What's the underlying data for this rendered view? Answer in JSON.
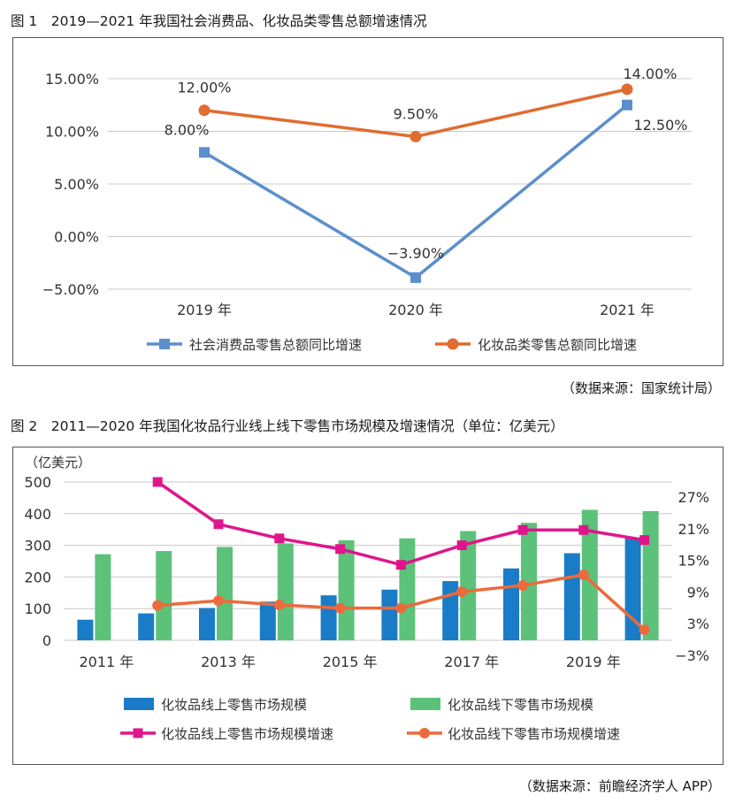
{
  "figure1": {
    "title": "图 1　2019—2021 年我国社会消费品、化妆品类零售总额增速情况",
    "source": "（数据来源：国家统计局）"
  },
  "figure2": {
    "title": "图 2　2011—2020 年我国化妆品行业线上线下零售市场规模及增速情况（单位：亿美元）",
    "source": "（数据来源：前瞻经济学人 APP）"
  },
  "colors": {
    "blue_line": "#5b8fcc",
    "orange_line": "#e06c30",
    "blue_bar": "#1a7cc7",
    "green_bar": "#5cc27a",
    "magenta_line": "#e0158c",
    "orange_line2": "#ec6a3c"
  },
  "chart_data": [
    {
      "type": "line",
      "categories": [
        "2019 年",
        "2020 年",
        "2021 年"
      ],
      "series": [
        {
          "name": "社会消费品零售总额同比增速",
          "values": [
            8.0,
            -3.9,
            12.5
          ],
          "labels": [
            "8.00%",
            "−3.90%",
            "12.50%"
          ]
        },
        {
          "name": "化妆品类零售总额同比增速",
          "values": [
            12.0,
            9.5,
            14.0
          ],
          "labels": [
            "12.00%",
            "9.50%",
            "14.00%"
          ]
        }
      ],
      "y_ticks": [
        "15.00%",
        "10.00%",
        "5.00%",
        "0.00%",
        "−5.00%"
      ],
      "ylim": [
        -5,
        15
      ],
      "grid": "horizontal",
      "legend": "bottom"
    },
    {
      "type": "bar",
      "categories": [
        2011,
        2012,
        2013,
        2014,
        2015,
        2016,
        2017,
        2018,
        2019,
        2020
      ],
      "x_tick_labels": [
        "2011 年",
        "2013 年",
        "2015 年",
        "2017 年",
        "2019 年"
      ],
      "y_unit_label": "（亿美元）",
      "y_ticks": [
        "500",
        "400",
        "300",
        "200",
        "100",
        "0"
      ],
      "ylim": [
        0,
        500
      ],
      "y2_ticks": [
        "27%",
        "21%",
        "15%",
        "9%",
        "3%",
        "−3%"
      ],
      "y2lim": [
        -3,
        27
      ],
      "series": [
        {
          "name": "化妆品线上零售市场规模",
          "kind": "bar",
          "axis": "left",
          "values": [
            65,
            85,
            102,
            122,
            142,
            160,
            187,
            227,
            275,
            323
          ]
        },
        {
          "name": "化妆品线下零售市场规模",
          "kind": "bar",
          "axis": "left",
          "values": [
            272,
            282,
            295,
            306,
            316,
            322,
            345,
            371,
            412,
            408
          ]
        },
        {
          "name": "化妆品线上零售市场规模增速",
          "kind": "line",
          "axis": "right",
          "values": [
            null,
            27,
            19,
            16.3,
            14.3,
            11.3,
            15,
            17.9,
            17.9,
            16
          ]
        },
        {
          "name": "化妆品线下零售市场规模增速",
          "kind": "line",
          "axis": "right",
          "values": [
            null,
            3.6,
            4.5,
            3.7,
            3.1,
            3.1,
            6.2,
            7.4,
            9.4,
            -1
          ]
        }
      ],
      "grid": "horizontal",
      "legend": "bottom"
    }
  ]
}
